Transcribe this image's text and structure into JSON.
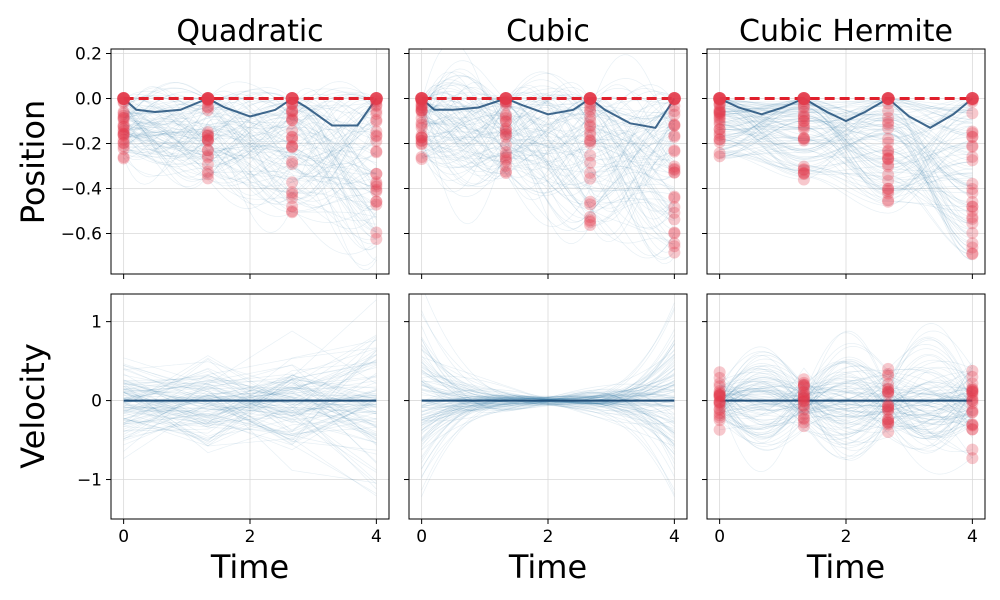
{
  "chart_data": [
    {
      "type": "line",
      "panel": "position-quadratic",
      "title": "Quadratic",
      "xlabel": "",
      "ylabel": "Position",
      "xlim": [
        -0.2,
        4.2
      ],
      "ylim": [
        -0.78,
        0.22
      ],
      "xticks": [
        0,
        2,
        4
      ],
      "xtick_labels": [
        "",
        "",
        ""
      ],
      "yticks": [
        0.2,
        0.0,
        -0.2,
        -0.4,
        -0.6
      ],
      "ytick_labels": [
        "0.2",
        "0.0",
        "−0.2",
        "−0.4",
        "−0.6"
      ],
      "knots_x": [
        0,
        1.333,
        2.667,
        4
      ],
      "series": [
        {
          "role": "target",
          "style": "dashed",
          "x": [
            0,
            4
          ],
          "y": [
            0,
            0
          ]
        },
        {
          "role": "mean",
          "x": [
            0,
            0.2,
            0.5,
            0.9,
            1.333,
            1.6,
            2.0,
            2.4,
            2.667,
            2.9,
            3.3,
            3.7,
            4.0
          ],
          "y": [
            0,
            -0.05,
            -0.06,
            -0.05,
            0,
            -0.04,
            -0.08,
            -0.05,
            0,
            -0.04,
            -0.12,
            -0.12,
            0
          ]
        }
      ],
      "knot_samples_min": [
        -0.27,
        -0.36,
        -0.51,
        -0.72
      ]
    },
    {
      "type": "line",
      "panel": "position-cubic",
      "title": "Cubic",
      "xlabel": "",
      "ylabel": "",
      "xlim": [
        -0.2,
        4.2
      ],
      "ylim": [
        -0.78,
        0.22
      ],
      "xticks": [
        0,
        2,
        4
      ],
      "xtick_labels": [
        "",
        "",
        ""
      ],
      "yticks": [
        0.2,
        0.0,
        -0.2,
        -0.4,
        -0.6
      ],
      "ytick_labels": [
        "",
        "",
        "",
        "",
        ""
      ],
      "knots_x": [
        0,
        1.333,
        2.667,
        4
      ],
      "series": [
        {
          "role": "target",
          "style": "dashed",
          "x": [
            0,
            4
          ],
          "y": [
            0,
            0
          ]
        },
        {
          "role": "mean",
          "x": [
            0,
            0.2,
            0.5,
            0.9,
            1.333,
            1.6,
            2.0,
            2.4,
            2.667,
            2.9,
            3.3,
            3.7,
            4.0
          ],
          "y": [
            0,
            -0.05,
            -0.05,
            -0.04,
            0,
            -0.03,
            -0.07,
            -0.05,
            0,
            -0.05,
            -0.11,
            -0.13,
            0
          ]
        }
      ],
      "knot_samples_min": [
        -0.27,
        -0.36,
        -0.58,
        -0.72
      ]
    },
    {
      "type": "line",
      "panel": "position-cubic-hermite",
      "title": "Cubic Hermite",
      "xlabel": "",
      "ylabel": "",
      "xlim": [
        -0.2,
        4.2
      ],
      "ylim": [
        -0.78,
        0.22
      ],
      "xticks": [
        0,
        2,
        4
      ],
      "xtick_labels": [
        "",
        "",
        ""
      ],
      "yticks": [
        0.2,
        0.0,
        -0.2,
        -0.4,
        -0.6
      ],
      "ytick_labels": [
        "",
        "",
        "",
        "",
        ""
      ],
      "knots_x": [
        0,
        1.333,
        2.667,
        4
      ],
      "series": [
        {
          "role": "target",
          "style": "dashed",
          "x": [
            0,
            4
          ],
          "y": [
            0,
            0
          ]
        },
        {
          "role": "mean",
          "x": [
            0,
            0.3,
            0.667,
            1.0,
            1.333,
            1.7,
            2.0,
            2.3,
            2.667,
            3.0,
            3.333,
            3.7,
            4.0
          ],
          "y": [
            0,
            -0.04,
            -0.07,
            -0.04,
            0,
            -0.06,
            -0.1,
            -0.06,
            0,
            -0.08,
            -0.13,
            -0.07,
            0
          ]
        }
      ],
      "knot_samples_min": [
        -0.27,
        -0.36,
        -0.51,
        -0.72
      ]
    },
    {
      "type": "line",
      "panel": "velocity-quadratic",
      "title": "",
      "xlabel": "Time",
      "ylabel": "Velocity",
      "xlim": [
        -0.2,
        4.2
      ],
      "ylim": [
        -1.5,
        1.35
      ],
      "xticks": [
        0,
        2,
        4
      ],
      "xtick_labels": [
        "0",
        "2",
        "4"
      ],
      "yticks": [
        1,
        0,
        -1
      ],
      "ytick_labels": [
        "1",
        "0",
        "−1"
      ],
      "series": [
        {
          "role": "mean",
          "x": [
            0,
            4
          ],
          "y": [
            0,
            0
          ]
        }
      ],
      "envelope_at_knots": [
        0.5,
        0.45,
        0.5,
        0.9
      ]
    },
    {
      "type": "line",
      "panel": "velocity-cubic",
      "title": "",
      "xlabel": "Time",
      "ylabel": "",
      "xlim": [
        -0.2,
        4.2
      ],
      "ylim": [
        -1.5,
        1.35
      ],
      "xticks": [
        0,
        2,
        4
      ],
      "xtick_labels": [
        "0",
        "2",
        "4"
      ],
      "yticks": [
        1,
        0,
        -1
      ],
      "ytick_labels": [
        "",
        "",
        ""
      ],
      "series": [
        {
          "role": "mean",
          "x": [
            0,
            4
          ],
          "y": [
            0,
            0
          ]
        }
      ],
      "envelope_at_knots": [
        0.85,
        0.3,
        0.4,
        1.2
      ]
    },
    {
      "type": "line",
      "panel": "velocity-cubic-hermite",
      "title": "",
      "xlabel": "Time",
      "ylabel": "",
      "xlim": [
        -0.2,
        4.2
      ],
      "ylim": [
        -1.5,
        1.35
      ],
      "xticks": [
        0,
        2,
        4
      ],
      "xtick_labels": [
        "0",
        "2",
        "4"
      ],
      "yticks": [
        1,
        0,
        -1
      ],
      "ytick_labels": [
        "",
        "",
        ""
      ],
      "knots_x": [
        0,
        1.333,
        2.667,
        4
      ],
      "series": [
        {
          "role": "mean",
          "x": [
            0,
            4
          ],
          "y": [
            0,
            0
          ]
        }
      ],
      "envelope_at_knots": [
        0.25,
        0.3,
        0.45,
        0.55
      ]
    }
  ],
  "colors": {
    "sample_lines": "#2a7aa8",
    "mean_line": "#1f4e79",
    "target_line": "#e0202c",
    "knot_markers": "#e23a4a",
    "grid": "#d9d9d9",
    "axes": "#000000"
  }
}
